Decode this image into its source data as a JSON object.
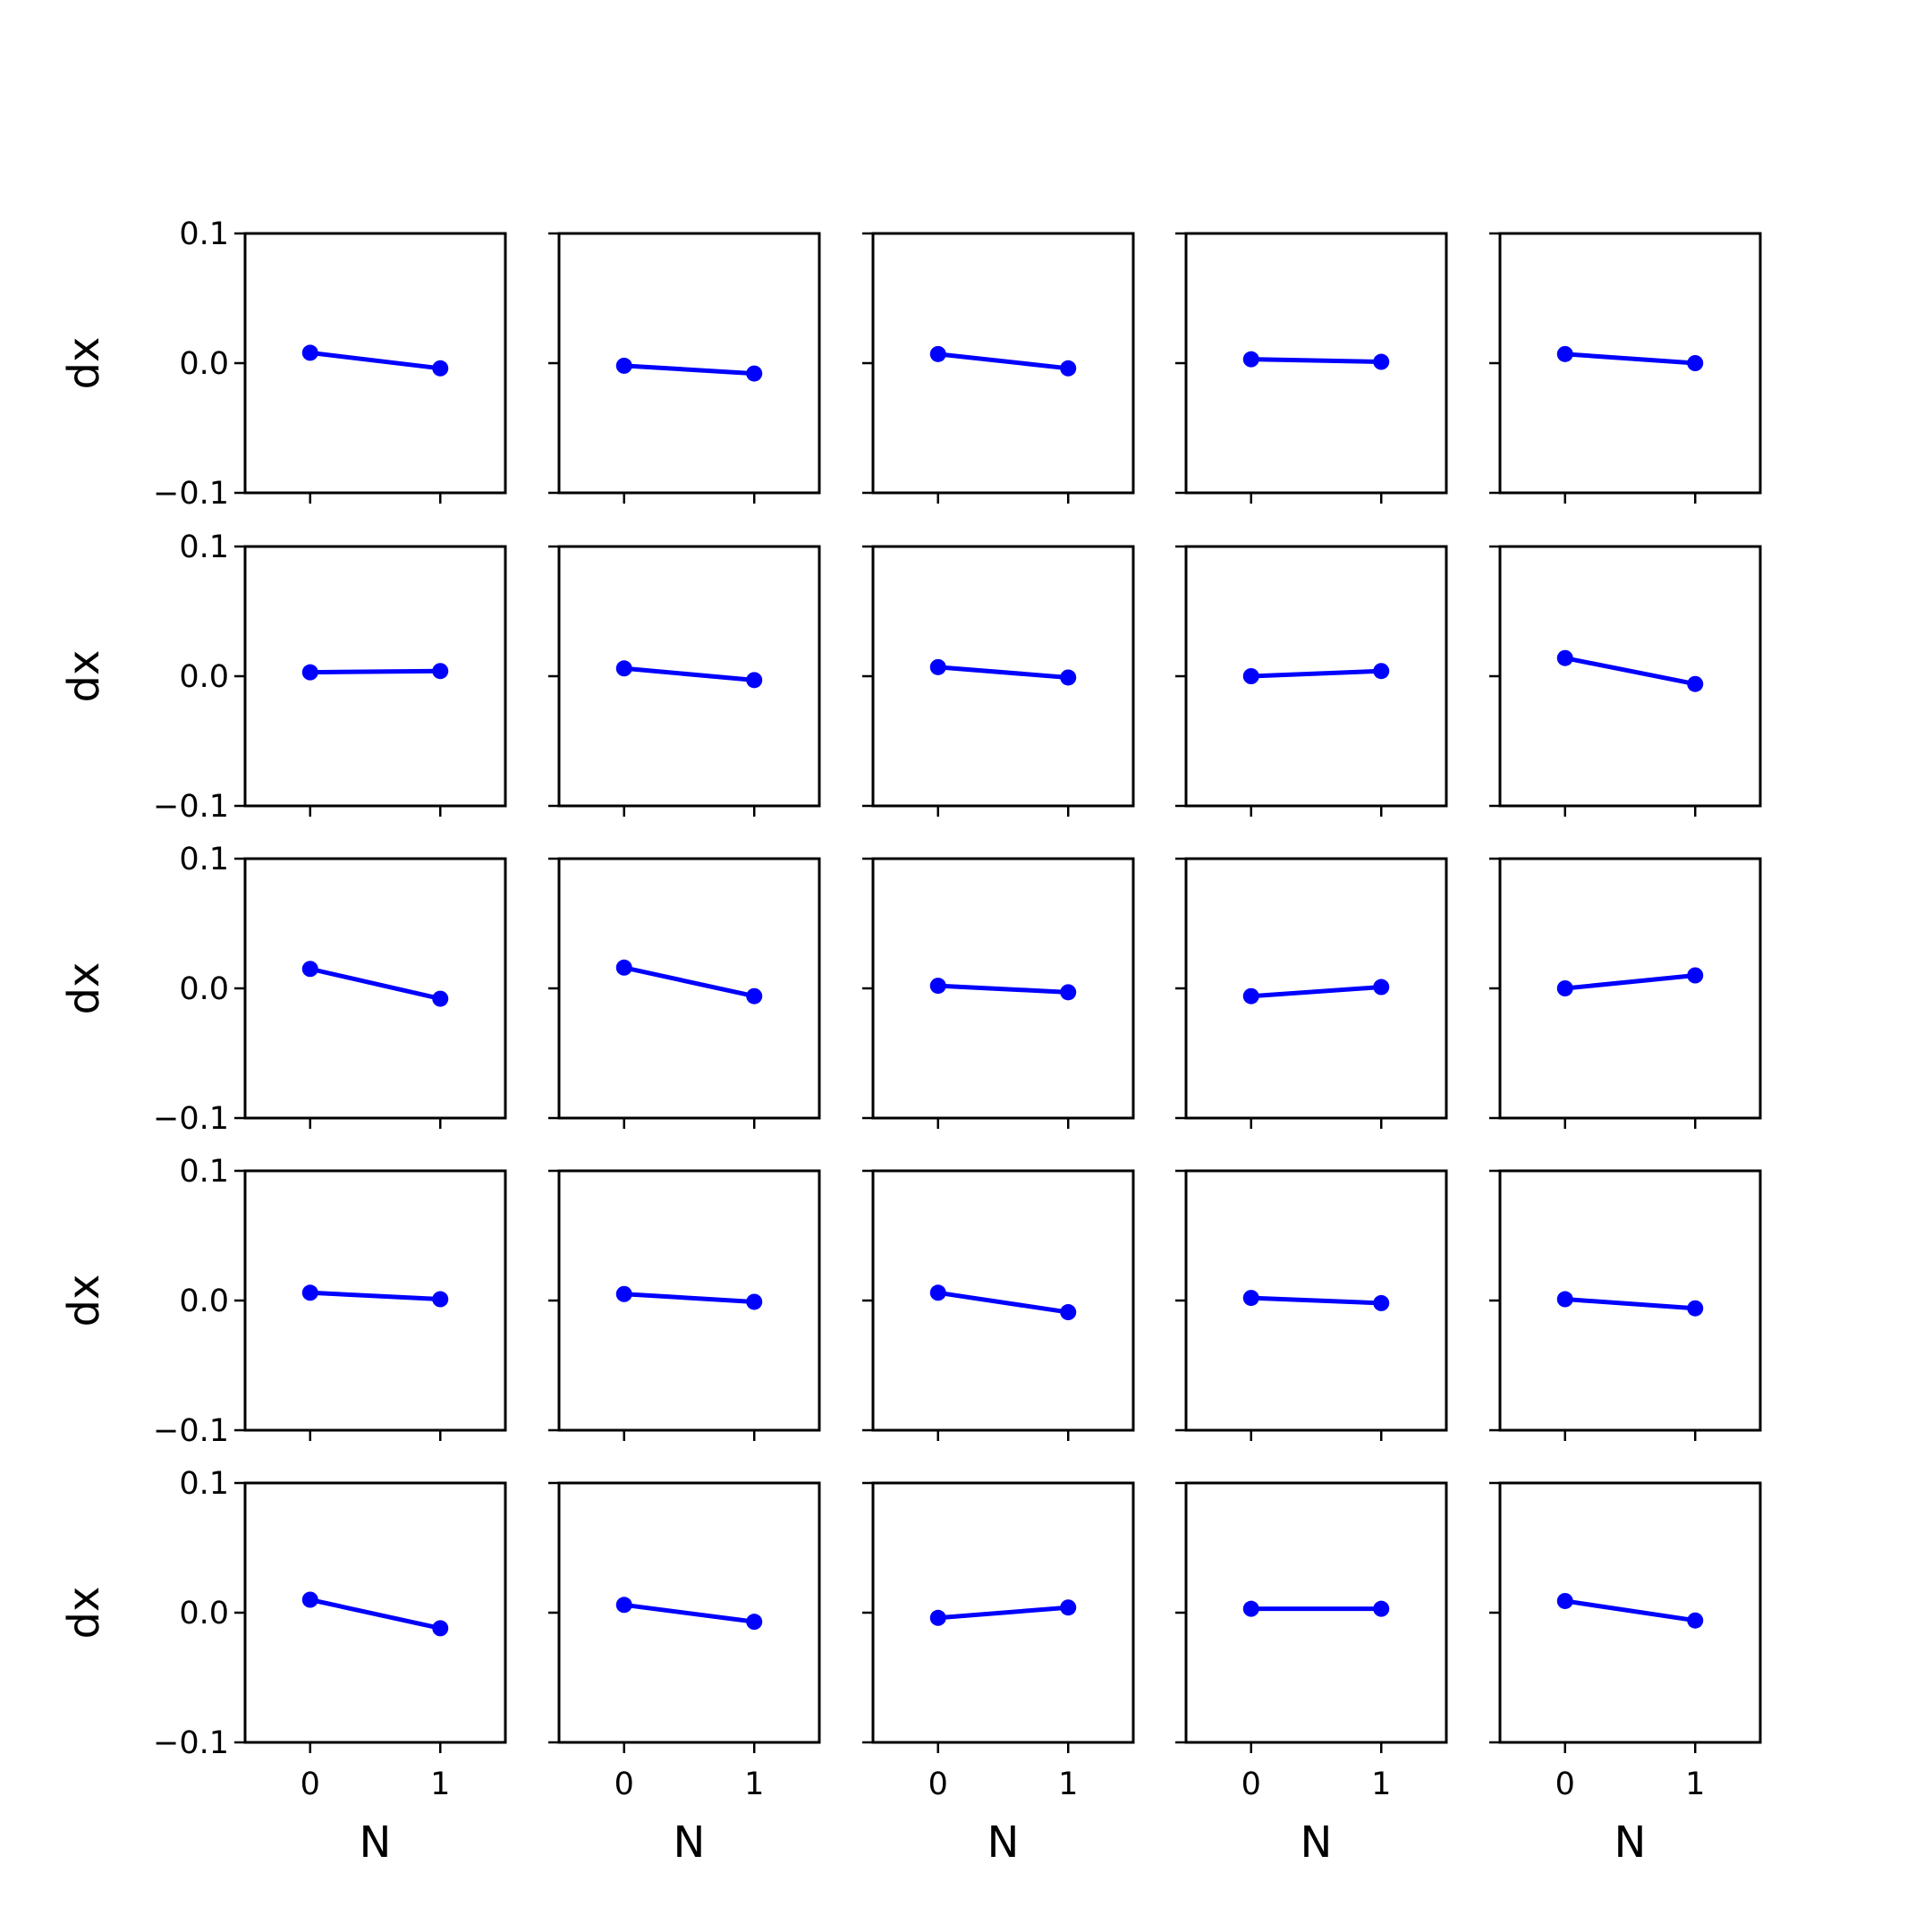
{
  "chart_data": {
    "type": "line",
    "layout": "5x5 small multiples",
    "xlabel": "N",
    "ylabel": "dx",
    "x": [
      0,
      1
    ],
    "x_ticks": [
      "0",
      "1"
    ],
    "xlim": [
      -0.5,
      1.5
    ],
    "ylim": [
      -0.1,
      0.1
    ],
    "y_ticks": [
      "0.1",
      "0.0",
      "−0.1"
    ],
    "y_tick_values": [
      0.1,
      0.0,
      -0.1
    ],
    "grid": false,
    "line_color": "#0000ff",
    "marker": "circle",
    "panels": [
      {
        "row": 0,
        "col": 0,
        "values": [
          0.008,
          -0.004
        ]
      },
      {
        "row": 0,
        "col": 1,
        "values": [
          -0.002,
          -0.008
        ]
      },
      {
        "row": 0,
        "col": 2,
        "values": [
          0.007,
          -0.004
        ]
      },
      {
        "row": 0,
        "col": 3,
        "values": [
          0.003,
          0.001
        ]
      },
      {
        "row": 0,
        "col": 4,
        "values": [
          0.007,
          0.0
        ]
      },
      {
        "row": 1,
        "col": 0,
        "values": [
          0.003,
          0.004
        ]
      },
      {
        "row": 1,
        "col": 1,
        "values": [
          0.006,
          -0.003
        ]
      },
      {
        "row": 1,
        "col": 2,
        "values": [
          0.007,
          -0.001
        ]
      },
      {
        "row": 1,
        "col": 3,
        "values": [
          0.0,
          0.004
        ]
      },
      {
        "row": 1,
        "col": 4,
        "values": [
          0.014,
          -0.006
        ]
      },
      {
        "row": 2,
        "col": 0,
        "values": [
          0.015,
          -0.008
        ]
      },
      {
        "row": 2,
        "col": 1,
        "values": [
          0.016,
          -0.006
        ]
      },
      {
        "row": 2,
        "col": 2,
        "values": [
          0.002,
          -0.003
        ]
      },
      {
        "row": 2,
        "col": 3,
        "values": [
          -0.006,
          0.001
        ]
      },
      {
        "row": 2,
        "col": 4,
        "values": [
          0.0,
          0.01
        ]
      },
      {
        "row": 3,
        "col": 0,
        "values": [
          0.006,
          0.001
        ]
      },
      {
        "row": 3,
        "col": 1,
        "values": [
          0.005,
          -0.001
        ]
      },
      {
        "row": 3,
        "col": 2,
        "values": [
          0.006,
          -0.009
        ]
      },
      {
        "row": 3,
        "col": 3,
        "values": [
          0.002,
          -0.002
        ]
      },
      {
        "row": 3,
        "col": 4,
        "values": [
          0.001,
          -0.006
        ]
      },
      {
        "row": 4,
        "col": 0,
        "values": [
          0.01,
          -0.012
        ]
      },
      {
        "row": 4,
        "col": 1,
        "values": [
          0.006,
          -0.007
        ]
      },
      {
        "row": 4,
        "col": 2,
        "values": [
          -0.004,
          0.004
        ]
      },
      {
        "row": 4,
        "col": 3,
        "values": [
          0.003,
          0.003
        ]
      },
      {
        "row": 4,
        "col": 4,
        "values": [
          0.009,
          -0.006
        ]
      }
    ]
  }
}
